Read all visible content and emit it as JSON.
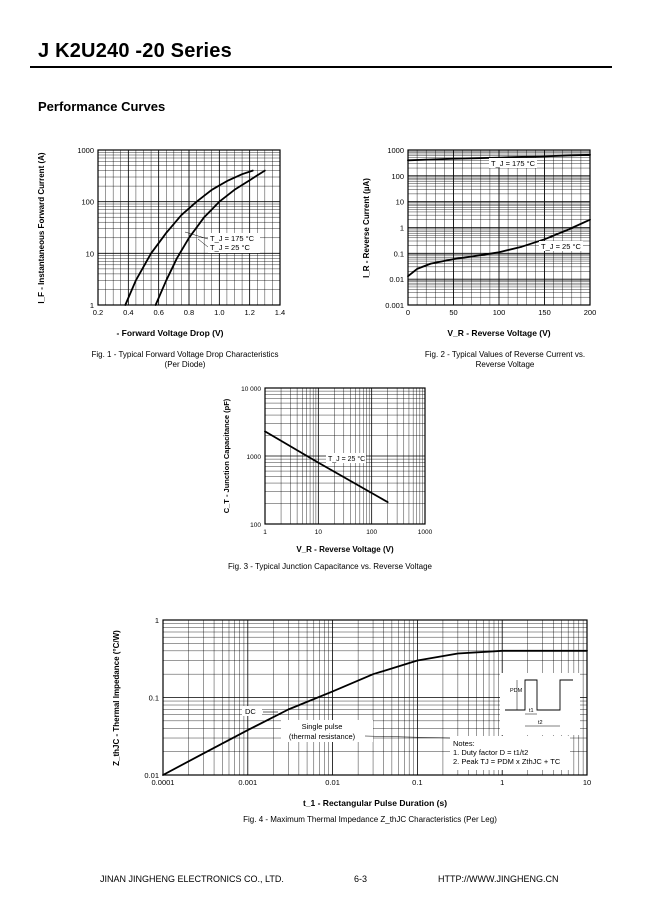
{
  "header": {
    "title": "J K2U240 -20 Series"
  },
  "section": {
    "title": "Performance Curves"
  },
  "figures": {
    "fig1": {
      "caption_line1": "Fig. 1 - Typical Forward Voltage Drop Characteristics",
      "caption_line2": "(Per Diode)",
      "xlabel_main": "V",
      "xlabel_sub": "F",
      "xlabel_rest": " - Forward Voltage Drop (V)",
      "ylabel": "I_F - Instantaneous Forward Current (A)",
      "label_hot": "T_J = 175 °C",
      "label_room": "T_J = 25 °C"
    },
    "fig2": {
      "caption_line1": "Fig. 2 - Typical Values of Reverse Current vs.",
      "caption_line2": "Reverse Voltage",
      "xlabel": "V_R - Reverse Voltage (V)",
      "ylabel": "I_R - Reverse Current (µA)",
      "label_hot": "T_J = 175 °C",
      "label_room": "T_J = 25 °C"
    },
    "fig3": {
      "caption": "Fig. 3 - Typical Junction Capacitance vs. Reverse Voltage",
      "xlabel": "V_R - Reverse Voltage (V)",
      "ylabel": "C_T - Junction Capacitance (pF)",
      "label": "T_J = 25 °C"
    },
    "fig4": {
      "caption": "Fig. 4 - Maximum Thermal Impedance Z_thJC Characteristics (Per Leg)",
      "xlabel": "t_1 - Rectangular Pulse Duration (s)",
      "ylabel": "Z_thJC - Thermal Impedance (°C/W)",
      "label_dc": "DC",
      "label_single1": "Single pulse",
      "label_single2": "(thermal resistance)",
      "notes_title": "Notes:",
      "note1": "1. Duty factor D = t1/t2",
      "note2": "2. Peak TJ = PDM x ZthJC + TC",
      "inset_pdm": "PDM",
      "inset_t1": "t1",
      "inset_t2": "t2"
    }
  },
  "footer": {
    "company": "JINAN JINGHENG ELECTRONICS CO., LTD.",
    "page": "6-3",
    "url": "HTTP://WWW.JINGHENG.CN"
  },
  "chart_data": [
    {
      "type": "line",
      "title": "Fig. 1 - Typical Forward Voltage Drop Characteristics",
      "xlabel": "VF - Forward Voltage Drop (V)",
      "ylabel": "IF - Instantaneous Forward Current (A)",
      "xlim": [
        0.2,
        1.4
      ],
      "ylim": [
        1,
        1000
      ],
      "yscale": "log",
      "xticks": [
        "0.2",
        "0.4",
        "0.6",
        "0.8",
        "1.0",
        "1.2",
        "1.4"
      ],
      "yticks": [
        "1",
        "10",
        "100",
        "1000"
      ],
      "series": [
        {
          "name": "TJ = 175 °C",
          "x": [
            0.38,
            0.45,
            0.55,
            0.65,
            0.75,
            0.85,
            0.95,
            1.05,
            1.15,
            1.22
          ],
          "y": [
            1,
            3,
            10,
            25,
            55,
            100,
            170,
            250,
            340,
            400
          ]
        },
        {
          "name": "TJ = 25 °C",
          "x": [
            0.58,
            0.65,
            0.72,
            0.8,
            0.9,
            1.0,
            1.1,
            1.2,
            1.3
          ],
          "y": [
            1,
            3,
            8,
            20,
            50,
            100,
            170,
            260,
            400
          ]
        }
      ]
    },
    {
      "type": "line",
      "title": "Fig. 2 - Typical Values of Reverse Current vs. Reverse Voltage",
      "xlabel": "VR - Reverse Voltage (V)",
      "ylabel": "IR - Reverse Current (µA)",
      "xlim": [
        0,
        200
      ],
      "ylim": [
        0.001,
        1000
      ],
      "yscale": "log",
      "xticks": [
        "0",
        "50",
        "100",
        "150",
        "200"
      ],
      "yticks": [
        "0.001",
        "0.01",
        "0.1",
        "1",
        "10",
        "100",
        "1000"
      ],
      "series": [
        {
          "name": "TJ = 175 °C",
          "x": [
            0,
            25,
            50,
            75,
            100,
            125,
            150,
            175,
            200
          ],
          "y": [
            400,
            430,
            460,
            480,
            510,
            540,
            570,
            610,
            650
          ]
        },
        {
          "name": "TJ = 25 °C",
          "x": [
            0,
            10,
            25,
            50,
            75,
            100,
            125,
            150,
            175,
            200
          ],
          "y": [
            0.013,
            0.025,
            0.04,
            0.06,
            0.08,
            0.11,
            0.18,
            0.35,
            0.8,
            2
          ]
        }
      ]
    },
    {
      "type": "line",
      "title": "Fig. 3 - Typical Junction Capacitance vs. Reverse Voltage",
      "xlabel": "VR - Reverse Voltage (V)",
      "ylabel": "CT - Junction Capacitance (pF)",
      "xlim": [
        1,
        1000
      ],
      "ylim": [
        100,
        10000
      ],
      "xscale": "log",
      "yscale": "log",
      "xticks": [
        "1",
        "10",
        "100",
        "1000"
      ],
      "yticks": [
        "100",
        "1000",
        "10 000"
      ],
      "series": [
        {
          "name": "TJ = 25 °C",
          "x": [
            1,
            10,
            200
          ],
          "y": [
            2300,
            800,
            210
          ]
        }
      ]
    },
    {
      "type": "line",
      "title": "Fig. 4 - Maximum Thermal Impedance ZthJC Characteristics (Per Leg)",
      "xlabel": "t1 - Rectangular Pulse Duration (s)",
      "ylabel": "ZthJC - Thermal Impedance (°C/W)",
      "xlim": [
        0.0001,
        10
      ],
      "ylim": [
        0.01,
        1
      ],
      "xscale": "log",
      "yscale": "log",
      "xticks": [
        "0.0001",
        "0.001",
        "0.01",
        "0.1",
        "1",
        "10"
      ],
      "yticks": [
        "0.01",
        "0.1",
        "1"
      ],
      "series": [
        {
          "name": "Single pulse (thermal resistance)",
          "x": [
            0.0001,
            0.0003,
            0.001,
            0.003,
            0.01,
            0.03,
            0.1,
            0.3,
            1,
            10
          ],
          "y": [
            0.01,
            0.019,
            0.038,
            0.07,
            0.12,
            0.2,
            0.3,
            0.37,
            0.4,
            0.4
          ]
        }
      ]
    }
  ]
}
